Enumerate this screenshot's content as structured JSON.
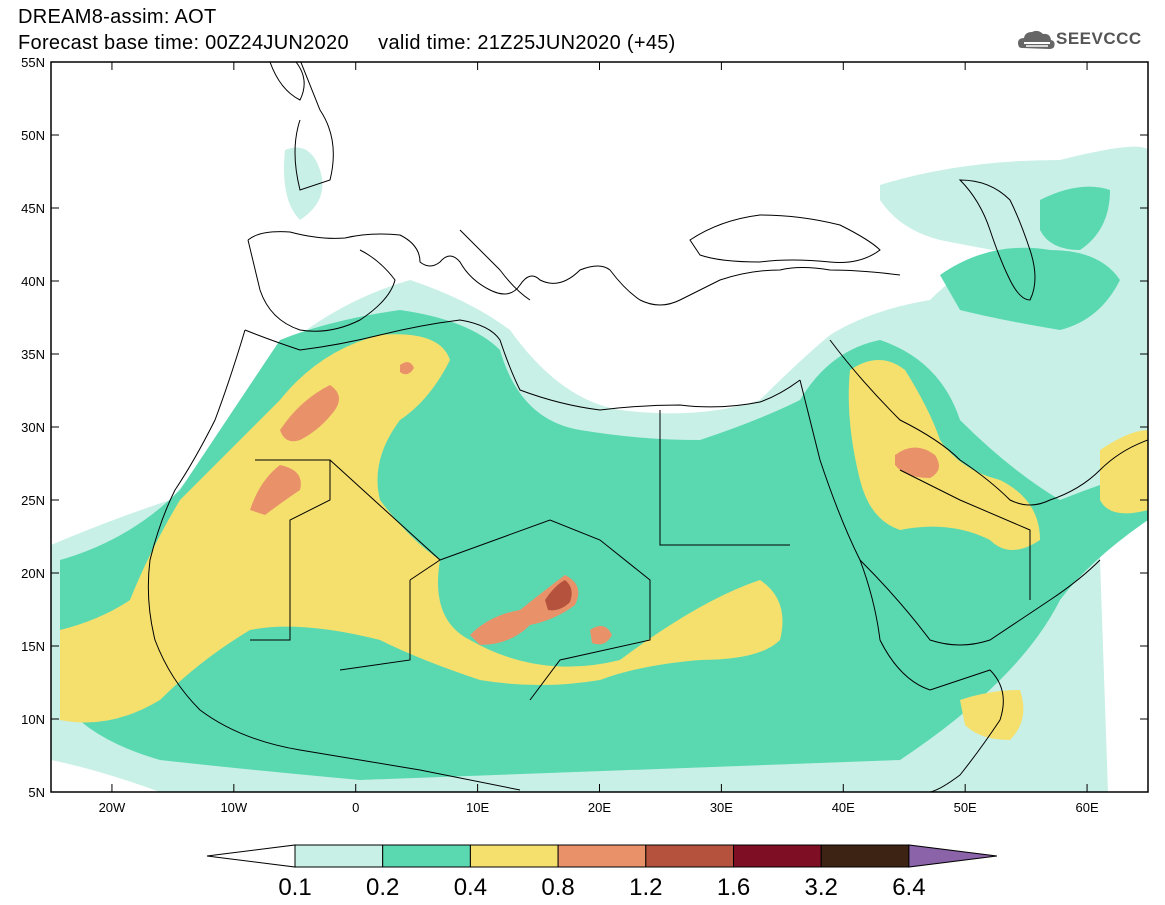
{
  "header": {
    "line1": "DREAM8-assim: AOT",
    "line2": "Forecast base time: 00Z24JUN2020     valid time: 21Z25JUN2020 (+45)"
  },
  "logo": {
    "text": "SEEVCCC",
    "icon": "cloud-icon"
  },
  "map": {
    "lon_range": [
      -25,
      65
    ],
    "lat_range": [
      5,
      55
    ],
    "lon_ticks": [
      "20W",
      "10W",
      "0",
      "10E",
      "20E",
      "30E",
      "40E",
      "50E",
      "60E"
    ],
    "lat_ticks": [
      "55N",
      "50N",
      "45N",
      "40N",
      "35N",
      "30N",
      "25N",
      "20N",
      "15N",
      "10N",
      "5N"
    ]
  },
  "colorbar": {
    "labels": [
      "0.1",
      "0.2",
      "0.4",
      "0.8",
      "1.2",
      "1.6",
      "3.2",
      "6.4"
    ],
    "colors": [
      "#c8f0e6",
      "#5ad9b0",
      "#f5e06e",
      "#e9926a",
      "#b4523e",
      "#7e0e24",
      "#3d2314",
      "#8a63a8"
    ]
  }
}
